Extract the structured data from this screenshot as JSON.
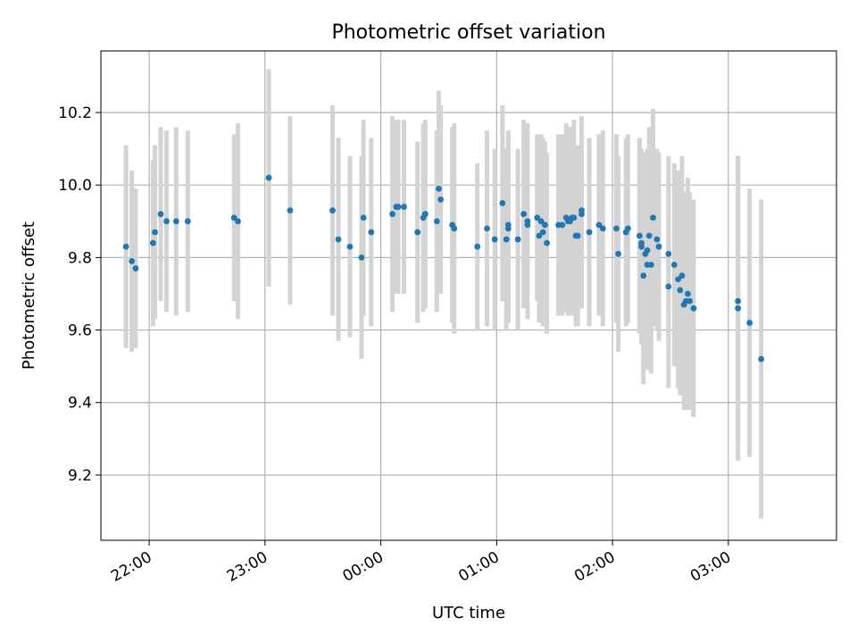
{
  "chart_data": {
    "type": "scatter",
    "title": "Photometric offset variation",
    "xlabel": "UTC time",
    "ylabel": "Photometric offset",
    "x_tick_labels": [
      "22:00",
      "23:00",
      "00:00",
      "01:00",
      "02:00",
      "03:00"
    ],
    "x_tick_values": [
      "22:00",
      "23:00",
      "00:00",
      "01:00",
      "02:00",
      "03:00"
    ],
    "y_tick_values": [
      9.2,
      9.4,
      9.6,
      9.8,
      10.0,
      10.2
    ],
    "xlim": [
      "21:35",
      "03:56"
    ],
    "ylim": [
      9.02,
      10.37
    ],
    "grid": true,
    "colors": {
      "points": "#1f77b4",
      "error_bars": "#d3d3d3",
      "grid": "#b0b0b0"
    },
    "series": [
      {
        "x": [
          "21:48",
          "21:51",
          "21:53",
          "22:02",
          "22:03",
          "22:06",
          "22:09",
          "22:14",
          "22:20",
          "22:44",
          "22:46",
          "23:02",
          "23:13",
          "23:35",
          "23:38",
          "23:44",
          "23:50",
          "23:51",
          "23:55",
          "00:06",
          "00:08",
          "00:09",
          "00:12",
          "00:19",
          "00:22",
          "00:23",
          "00:29",
          "00:30",
          "00:31",
          "00:37",
          "00:38",
          "00:50",
          "00:55",
          "00:59",
          "01:03",
          "01:05",
          "01:06",
          "01:06",
          "01:11",
          "01:14",
          "01:16",
          "01:16",
          "01:21",
          "01:22",
          "01:23",
          "01:24",
          "01:25",
          "01:26",
          "01:32",
          "01:34",
          "01:36",
          "01:37",
          "01:38",
          "01:39",
          "01:40",
          "01:41",
          "01:42",
          "01:44",
          "01:44",
          "01:48",
          "01:53",
          "01:55",
          "02:02",
          "02:03",
          "02:07",
          "02:08",
          "02:14",
          "02:15",
          "02:15",
          "02:16",
          "02:17",
          "02:18",
          "02:18",
          "02:19",
          "02:20",
          "02:21",
          "02:23",
          "02:24",
          "02:29",
          "02:29",
          "02:32",
          "02:34",
          "02:35",
          "02:36",
          "02:37",
          "02:38",
          "02:39",
          "02:40",
          "02:42",
          "03:05",
          "03:05",
          "03:11",
          "03:17"
        ],
        "y": [
          9.83,
          9.79,
          9.77,
          9.84,
          9.87,
          9.92,
          9.9,
          9.9,
          9.9,
          9.91,
          9.9,
          10.02,
          9.93,
          9.93,
          9.85,
          9.83,
          9.8,
          9.91,
          9.87,
          9.92,
          9.94,
          9.94,
          9.94,
          9.87,
          9.91,
          9.92,
          9.9,
          9.99,
          9.96,
          9.89,
          9.88,
          9.83,
          9.88,
          9.85,
          9.95,
          9.85,
          9.89,
          9.88,
          9.85,
          9.92,
          9.9,
          9.89,
          9.91,
          9.86,
          9.9,
          9.87,
          9.89,
          9.84,
          9.89,
          9.89,
          9.91,
          9.9,
          9.9,
          9.91,
          9.91,
          9.86,
          9.86,
          9.92,
          9.93,
          9.87,
          9.89,
          9.88,
          9.88,
          9.81,
          9.87,
          9.88,
          9.86,
          9.83,
          9.84,
          9.75,
          9.81,
          9.78,
          9.82,
          9.86,
          9.78,
          9.91,
          9.85,
          9.83,
          9.72,
          9.81,
          9.78,
          9.74,
          9.71,
          9.75,
          9.67,
          9.68,
          9.7,
          9.68,
          9.66,
          9.68,
          9.66,
          9.62,
          9.52
        ],
        "yerr": [
          0.28,
          0.25,
          0.22,
          0.23,
          0.24,
          0.24,
          0.25,
          0.26,
          0.25,
          0.23,
          0.27,
          0.3,
          0.26,
          0.29,
          0.28,
          0.25,
          0.28,
          0.27,
          0.26,
          0.27,
          0.24,
          0.24,
          0.24,
          0.25,
          0.26,
          0.26,
          0.25,
          0.27,
          0.26,
          0.27,
          0.29,
          0.23,
          0.27,
          0.25,
          0.27,
          0.25,
          0.26,
          0.26,
          0.25,
          0.26,
          0.27,
          0.26,
          0.23,
          0.24,
          0.24,
          0.26,
          0.23,
          0.25,
          0.25,
          0.25,
          0.26,
          0.26,
          0.26,
          0.25,
          0.27,
          0.25,
          0.25,
          0.26,
          0.26,
          0.26,
          0.25,
          0.27,
          0.26,
          0.27,
          0.26,
          0.26,
          0.27,
          0.27,
          0.26,
          0.3,
          0.28,
          0.29,
          0.28,
          0.3,
          0.3,
          0.3,
          0.25,
          0.26,
          0.28,
          0.27,
          0.28,
          0.3,
          0.29,
          0.33,
          0.29,
          0.3,
          0.32,
          0.3,
          0.3,
          0.4,
          0.42,
          0.37,
          0.44
        ]
      }
    ]
  }
}
